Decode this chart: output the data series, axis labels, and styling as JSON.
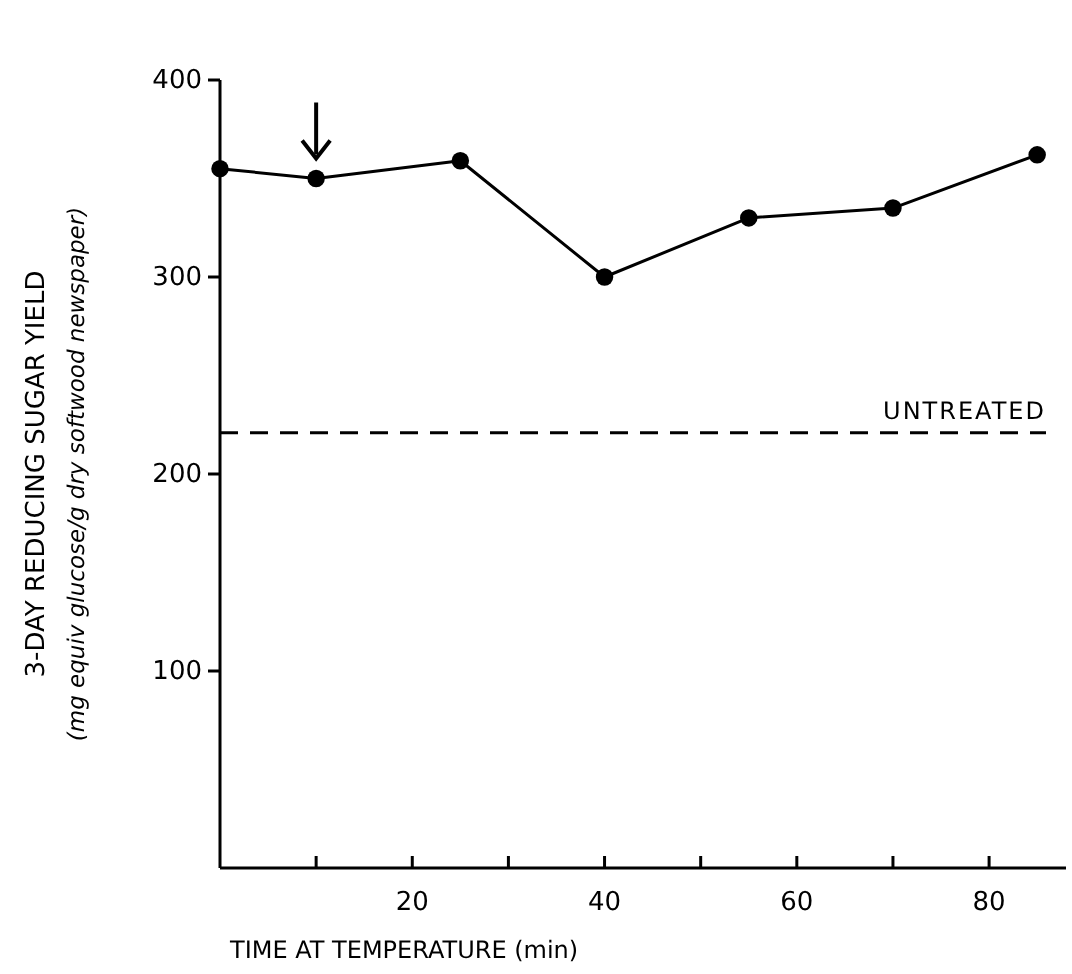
{
  "chart_data": {
    "type": "line",
    "xlabel": "TIME AT TEMPERATURE (min)",
    "ylabel": "3-DAY REDUCING SUGAR YIELD (mg equiv glucose/g dry softwood newspaper)",
    "x": [
      0,
      10,
      25,
      40,
      55,
      70,
      85
    ],
    "series": [
      {
        "color": "#000000",
        "values": [
          355,
          350,
          359,
          300,
          330,
          335,
          362
        ]
      }
    ],
    "xlim": [
      0,
      88
    ],
    "xticks": [
      {
        "value": 10,
        "label": null
      },
      20,
      {
        "value": 30,
        "label": null
      },
      40,
      {
        "value": 50,
        "label": null
      },
      60,
      {
        "value": 70,
        "label": null
      },
      80
    ],
    "ylim": [
      0,
      400
    ],
    "yticks": [
      100,
      200,
      300,
      400
    ],
    "ref_lines": [
      {
        "axis": "y",
        "value": 221,
        "label": "UNTREATED",
        "color": "#000000",
        "line_style": "dashed"
      }
    ],
    "marker": "circle",
    "line_style": "solid"
  }
}
